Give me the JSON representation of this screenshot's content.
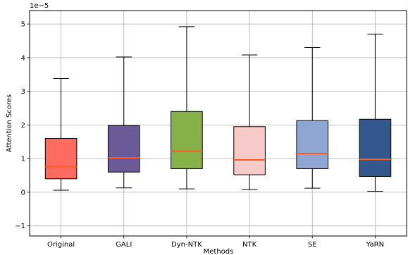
{
  "chart_data": {
    "type": "box",
    "xlabel": "Methods",
    "ylabel": "Attention Scores",
    "scale_label": "1e−5",
    "ylim": [
      -1.3,
      5.4
    ],
    "yticks": [
      -1,
      0,
      1,
      2,
      3,
      4,
      5
    ],
    "grid": true,
    "categories": [
      "Original",
      "GALI",
      "Dyn-NTK",
      "NTK",
      "SE",
      "YaRN"
    ],
    "boxes": [
      {
        "name": "Original",
        "whisker_low": 0.06,
        "q1": 0.4,
        "median": 0.76,
        "q3": 1.6,
        "whisker_high": 3.38,
        "color": "#ff6b5f"
      },
      {
        "name": "GALI",
        "whisker_low": 0.13,
        "q1": 0.6,
        "median": 1.02,
        "q3": 1.98,
        "whisker_high": 4.02,
        "color": "#6a5b98"
      },
      {
        "name": "Dyn-NTK",
        "whisker_low": 0.1,
        "q1": 0.7,
        "median": 1.22,
        "q3": 2.4,
        "whisker_high": 4.92,
        "color": "#86b149"
      },
      {
        "name": "NTK",
        "whisker_low": 0.08,
        "q1": 0.52,
        "median": 0.96,
        "q3": 1.95,
        "whisker_high": 4.08,
        "color": "#f7c9c9"
      },
      {
        "name": "SE",
        "whisker_low": 0.12,
        "q1": 0.7,
        "median": 1.15,
        "q3": 2.13,
        "whisker_high": 4.3,
        "color": "#8fa6d3"
      },
      {
        "name": "YaRN",
        "whisker_low": 0.03,
        "q1": 0.47,
        "median": 0.98,
        "q3": 2.17,
        "whisker_high": 4.7,
        "color": "#34578e"
      }
    ],
    "median_color": "#ff5a1f"
  }
}
